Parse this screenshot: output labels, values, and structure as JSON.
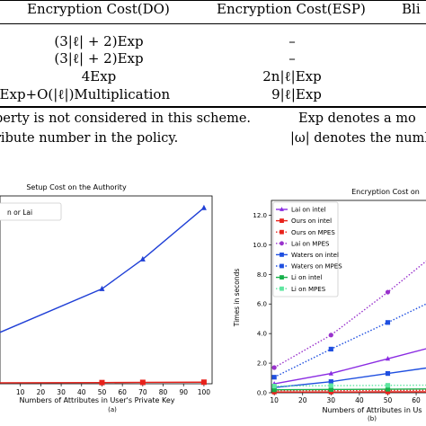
{
  "table": {
    "headers": [
      "Encryption Cost(DO)",
      "Encryption Cost(ESP)",
      "Bli"
    ],
    "rows": [
      [
        "(3|ℓ| + 2)Exp",
        "–"
      ],
      [
        "(3|ℓ| + 2)Exp",
        "–"
      ],
      [
        "4Exp",
        "2n|ℓ|Exp"
      ],
      [
        "4Exp+O(|ℓ|)Multiplication",
        "9|ℓ|Exp"
      ]
    ]
  },
  "notes": [
    [
      "perty is not considered in this scheme.",
      "Exp denotes a mo"
    ],
    [
      "ribute number in the policy.",
      "|ω| denotes the numb"
    ]
  ],
  "chart_data": [
    {
      "type": "line",
      "title": "Setup Cost on the Authority",
      "xlabel": "Numbers of Attributes in User's Private Key",
      "ylabel": "",
      "caption": "(a)",
      "legend_text": "n or Lai",
      "x_ticks": [
        10,
        20,
        30,
        40,
        50,
        60,
        70,
        80,
        90,
        100
      ],
      "xlim": [
        0,
        104
      ],
      "series": [
        {
          "name": "",
          "color": "#1f3fd6",
          "marker": "triangle",
          "x": [
            0,
            50,
            70,
            100
          ],
          "y": [
            2.6,
            4.8,
            6.3,
            8.9
          ]
        },
        {
          "name": "",
          "color": "#e8221b",
          "marker": "square",
          "x": [
            0,
            50,
            70,
            100
          ],
          "y": [
            0.05,
            0.06,
            0.07,
            0.08
          ]
        }
      ],
      "ylim": [
        0,
        9.5
      ]
    },
    {
      "type": "line",
      "title": "Encryption Cost on",
      "xlabel": "Numbers of Attributes in Us",
      "ylabel": "Times in seconds",
      "caption": "(b)",
      "x_ticks": [
        10,
        20,
        30,
        40,
        50,
        60
      ],
      "y_ticks": [
        "0.0",
        "2.0",
        "4.0",
        "6.0",
        "8.0",
        "10.0",
        "12.0"
      ],
      "xlim": [
        9,
        66
      ],
      "ylim": [
        0,
        13
      ],
      "series": [
        {
          "name": "Lai on intel",
          "color": "#8a2be2",
          "marker": "triangle",
          "style": "solid",
          "x": [
            10,
            30,
            50,
            70
          ],
          "y": [
            0.6,
            1.3,
            2.3,
            3.3
          ]
        },
        {
          "name": "Ours on intel",
          "color": "#e8221b",
          "marker": "square",
          "style": "solid",
          "x": [
            10,
            30,
            50,
            70
          ],
          "y": [
            0.05,
            0.05,
            0.06,
            0.06
          ]
        },
        {
          "name": "Ours on MPES",
          "color": "#e8221b",
          "marker": "square",
          "style": "dotted",
          "x": [
            10,
            30,
            50,
            70
          ],
          "y": [
            0.15,
            0.15,
            0.16,
            0.17
          ]
        },
        {
          "name": "Lai on MPES",
          "color": "#9932cc",
          "marker": "circle",
          "style": "dotted",
          "x": [
            10,
            30,
            50,
            70
          ],
          "y": [
            1.7,
            3.9,
            6.8,
            9.9
          ]
        },
        {
          "name": "Waters on intel",
          "color": "#1f4fe0",
          "marker": "square",
          "style": "solid",
          "x": [
            10,
            30,
            50,
            70
          ],
          "y": [
            0.35,
            0.75,
            1.3,
            1.85
          ]
        },
        {
          "name": "Waters on MPES",
          "color": "#1f4fe0",
          "marker": "square",
          "style": "dotted",
          "x": [
            10,
            30,
            50,
            70
          ],
          "y": [
            1.05,
            2.95,
            4.75,
            6.6
          ]
        },
        {
          "name": "Li on intel",
          "color": "#16b04a",
          "marker": "square",
          "style": "solid",
          "x": [
            10,
            30,
            50,
            70
          ],
          "y": [
            0.2,
            0.22,
            0.24,
            0.26
          ]
        },
        {
          "name": "Li on MPES",
          "color": "#5fe6a0",
          "marker": "square",
          "style": "dotted",
          "x": [
            10,
            30,
            50,
            70
          ],
          "y": [
            0.45,
            0.48,
            0.5,
            0.52
          ]
        }
      ]
    }
  ]
}
